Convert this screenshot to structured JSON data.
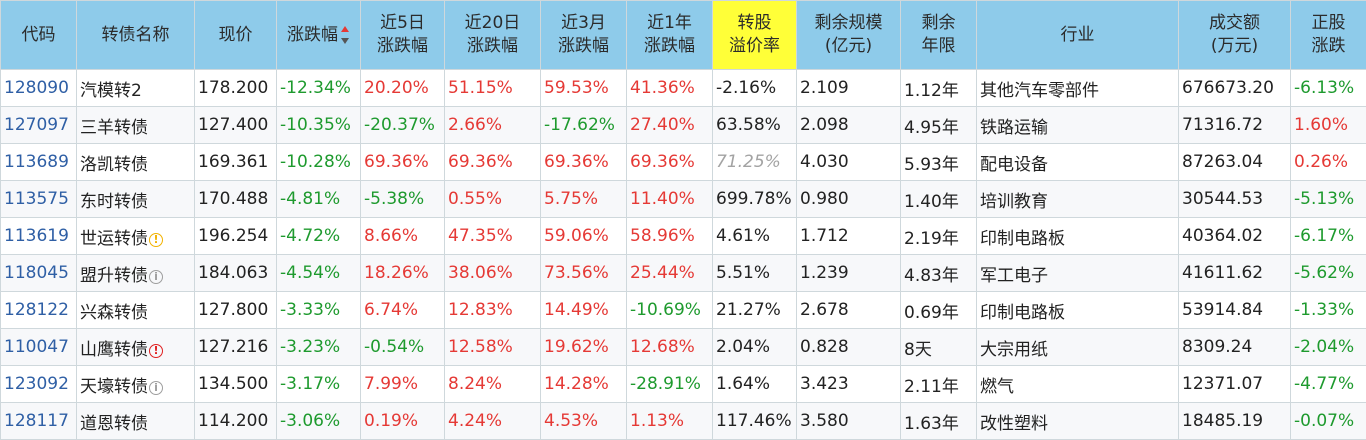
{
  "colors": {
    "header_bg": "#8ecbea",
    "highlight_header": "#ffff38",
    "up": "#e53935",
    "down": "#1e9a2e",
    "code_link": "#2f5fa5"
  },
  "header": {
    "code": "代码",
    "name": "转债名称",
    "price": "现价",
    "change": "涨跌幅",
    "d5": [
      "近5日",
      "涨跌幅"
    ],
    "d20": [
      "近20日",
      "涨跌幅"
    ],
    "m3": [
      "近3月",
      "涨跌幅"
    ],
    "y1": [
      "近1年",
      "涨跌幅"
    ],
    "premium": [
      "转股",
      "溢价率"
    ],
    "scale": [
      "剩余规模",
      "(亿元)"
    ],
    "years": [
      "剩余",
      "年限"
    ],
    "industry": "行业",
    "volume": [
      "成交额",
      "(万元)"
    ],
    "stock": [
      "正股",
      "涨跌"
    ]
  },
  "rows": [
    {
      "code": "128090",
      "name": "汽模转2",
      "icon": "",
      "price": "178.200",
      "change": "-12.34%",
      "d5": "20.20%",
      "d20": "51.15%",
      "m3": "59.53%",
      "y1": "41.36%",
      "premium": "-2.16%",
      "scale": "2.109",
      "years": "1.12年",
      "industry": "其他汽车零部件",
      "volume": "676673.20",
      "stock": "-6.13%"
    },
    {
      "code": "127097",
      "name": "三羊转债",
      "icon": "",
      "price": "127.400",
      "change": "-10.35%",
      "d5": "-20.37%",
      "d20": "2.66%",
      "m3": "-17.62%",
      "y1": "27.40%",
      "premium": "63.58%",
      "scale": "2.098",
      "years": "4.95年",
      "industry": "铁路运输",
      "volume": "71316.72",
      "stock": "1.60%"
    },
    {
      "code": "113689",
      "name": "洛凯转债",
      "icon": "",
      "price": "169.361",
      "change": "-10.28%",
      "d5": "69.36%",
      "d20": "69.36%",
      "m3": "69.36%",
      "y1": "69.36%",
      "premium": "71.25%",
      "scale": "4.030",
      "years": "5.93年",
      "industry": "配电设备",
      "volume": "87263.04",
      "stock": "0.26%"
    },
    {
      "code": "113575",
      "name": "东时转债",
      "icon": "",
      "price": "170.488",
      "change": "-4.81%",
      "d5": "-5.38%",
      "d20": "0.55%",
      "m3": "5.75%",
      "y1": "11.40%",
      "premium": "699.78%",
      "scale": "0.980",
      "years": "1.40年",
      "industry": "培训教育",
      "volume": "30544.53",
      "stock": "-5.13%"
    },
    {
      "code": "113619",
      "name": "世运转债",
      "icon": "warn-yellow",
      "price": "196.254",
      "change": "-4.72%",
      "d5": "8.66%",
      "d20": "47.35%",
      "m3": "59.06%",
      "y1": "58.96%",
      "premium": "4.61%",
      "scale": "1.712",
      "years": "2.19年",
      "industry": "印制电路板",
      "volume": "40364.02",
      "stock": "-6.17%"
    },
    {
      "code": "118045",
      "name": "盟升转债",
      "icon": "info-grey",
      "price": "184.063",
      "change": "-4.54%",
      "d5": "18.26%",
      "d20": "38.06%",
      "m3": "73.56%",
      "y1": "25.44%",
      "premium": "5.51%",
      "scale": "1.239",
      "years": "4.83年",
      "industry": "军工电子",
      "volume": "41611.62",
      "stock": "-5.62%"
    },
    {
      "code": "128122",
      "name": "兴森转债",
      "icon": "",
      "price": "127.800",
      "change": "-3.33%",
      "d5": "6.74%",
      "d20": "12.83%",
      "m3": "14.49%",
      "y1": "-10.69%",
      "premium": "21.27%",
      "scale": "2.678",
      "years": "0.69年",
      "industry": "印制电路板",
      "volume": "53914.84",
      "stock": "-1.33%"
    },
    {
      "code": "110047",
      "name": "山鹰转债",
      "icon": "warn-red",
      "price": "127.216",
      "change": "-3.23%",
      "d5": "-0.54%",
      "d20": "12.58%",
      "m3": "19.62%",
      "y1": "12.68%",
      "premium": "2.04%",
      "scale": "0.828",
      "years": "8天",
      "industry": "大宗用纸",
      "volume": "8309.24",
      "stock": "-2.04%"
    },
    {
      "code": "123092",
      "name": "天壕转债",
      "icon": "info-grey",
      "price": "134.500",
      "change": "-3.17%",
      "d5": "7.99%",
      "d20": "8.24%",
      "m3": "14.28%",
      "y1": "-28.91%",
      "premium": "1.64%",
      "scale": "3.423",
      "years": "2.11年",
      "industry": "燃气",
      "volume": "12371.07",
      "stock": "-4.77%"
    },
    {
      "code": "128117",
      "name": "道恩转债",
      "icon": "",
      "price": "114.200",
      "change": "-3.06%",
      "d5": "0.19%",
      "d20": "4.24%",
      "m3": "4.53%",
      "y1": "1.13%",
      "premium": "117.46%",
      "scale": "3.580",
      "years": "1.63年",
      "industry": "改性塑料",
      "volume": "18485.19",
      "stock": "-0.07%"
    }
  ]
}
